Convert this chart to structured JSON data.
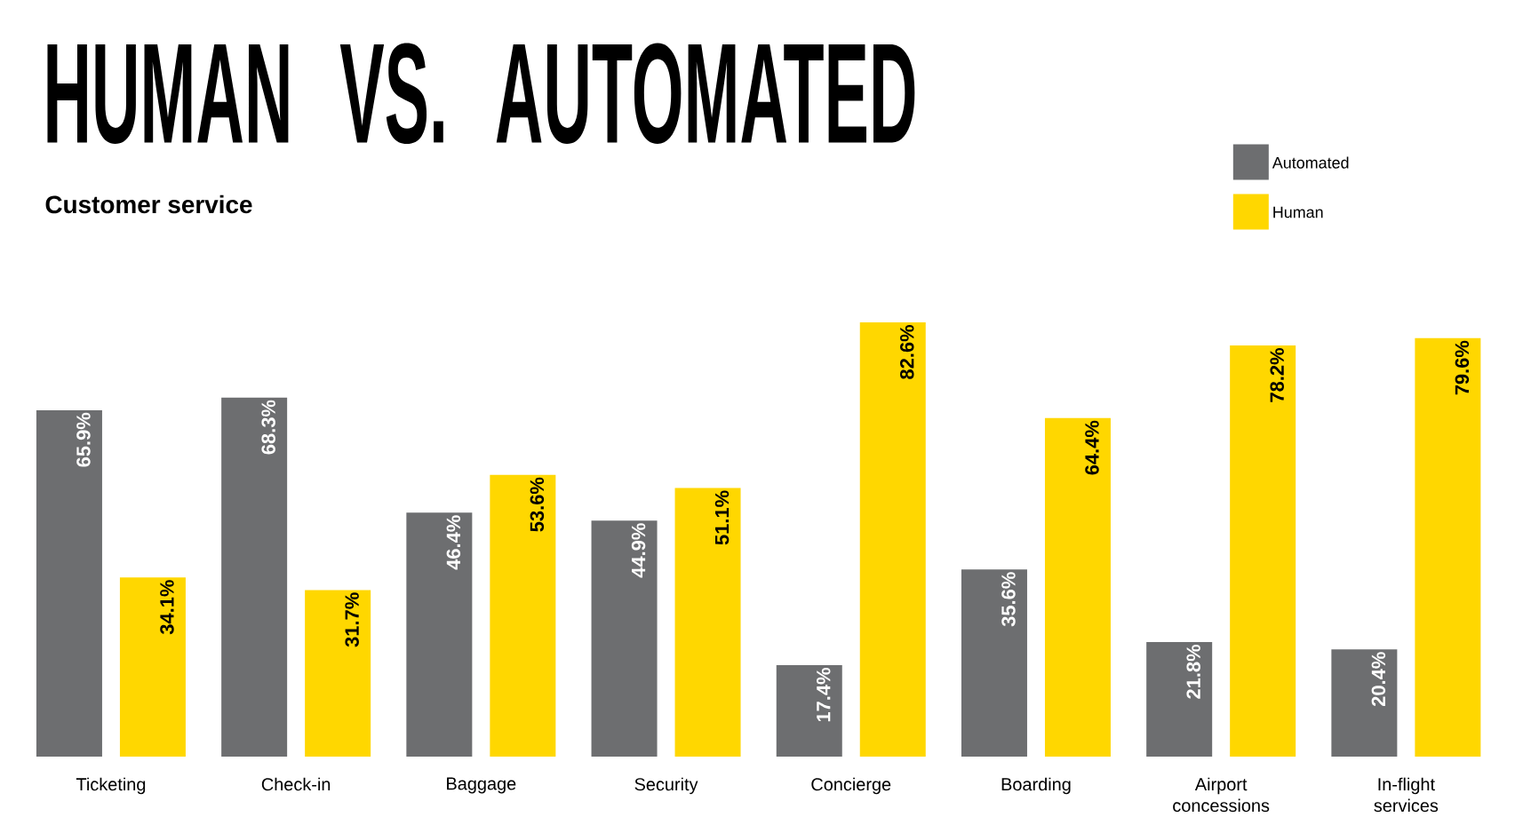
{
  "chart_data": {
    "type": "bar",
    "title": "HUMAN VS. AUTOMATED",
    "subtitle": "Customer service",
    "categories": [
      "Ticketing",
      "Check-in",
      "Baggage",
      "Security",
      "Concierge",
      "Boarding",
      "Airport concessions",
      "In-flight services"
    ],
    "series": [
      {
        "name": "Automated",
        "color": "#6d6e70",
        "values": [
          65.9,
          68.3,
          46.4,
          44.9,
          17.4,
          35.6,
          21.8,
          20.4
        ],
        "value_labels": [
          "65.9%",
          "68.3%",
          "46.4%",
          "44.9%",
          "17.4%",
          "35.6%",
          "21.8%",
          "20.4%"
        ]
      },
      {
        "name": "Human",
        "color": "#ffd700",
        "values": [
          34.1,
          31.7,
          53.6,
          51.1,
          82.6,
          64.4,
          78.2,
          79.6
        ],
        "value_labels": [
          "34.1%",
          "31.7%",
          "53.6%",
          "51.1%",
          "82.6%",
          "64.4%",
          "78.2%",
          "79.6%"
        ]
      }
    ],
    "legend": "top right"
  }
}
